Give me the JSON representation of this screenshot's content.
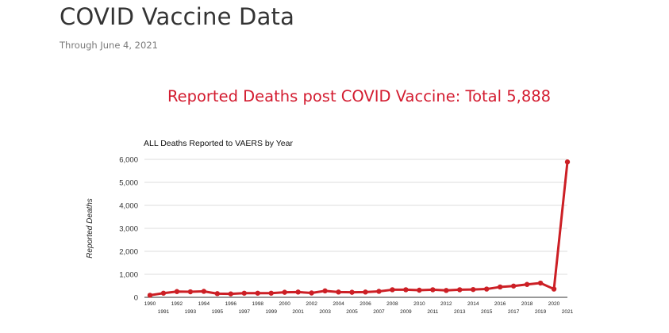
{
  "header": {
    "title": "COVID Vaccine Data",
    "subtitle": "Through June 4, 2021"
  },
  "chart_heading": "Reported Deaths post COVID Vaccine: Total 5,888",
  "colors": {
    "accent": "#d31b2f",
    "line": "#cc1f25",
    "title": "#333333",
    "subtitle": "#7a7a7a",
    "grid": "#dddddd"
  },
  "chart_data": {
    "type": "line",
    "title": "ALL Deaths Reported to VAERS by Year",
    "xlabel": "",
    "ylabel": "Reported Deaths",
    "ylim": [
      0,
      6000
    ],
    "yticks": [
      0,
      1000,
      2000,
      3000,
      4000,
      5000,
      6000
    ],
    "ytick_labels": [
      "0",
      "1,000",
      "2,000",
      "3,000",
      "4,000",
      "5,000",
      "6,000"
    ],
    "grid": true,
    "legend": "none",
    "x": [
      "1990",
      "1991",
      "1992",
      "1993",
      "1994",
      "1995",
      "1996",
      "1997",
      "1998",
      "1999",
      "2000",
      "2001",
      "2002",
      "2003",
      "2004",
      "2005",
      "2006",
      "2007",
      "2008",
      "2009",
      "2010",
      "2011",
      "2012",
      "2013",
      "2014",
      "2015",
      "2016",
      "2017",
      "2018",
      "2019",
      "2020",
      "2021"
    ],
    "series": [
      {
        "values": [
          90,
          180,
          250,
          240,
          260,
          160,
          150,
          180,
          180,
          180,
          220,
          230,
          190,
          280,
          230,
          220,
          230,
          260,
          330,
          330,
          310,
          330,
          300,
          330,
          340,
          360,
          450,
          490,
          560,
          620,
          360,
          5888
        ]
      }
    ]
  }
}
